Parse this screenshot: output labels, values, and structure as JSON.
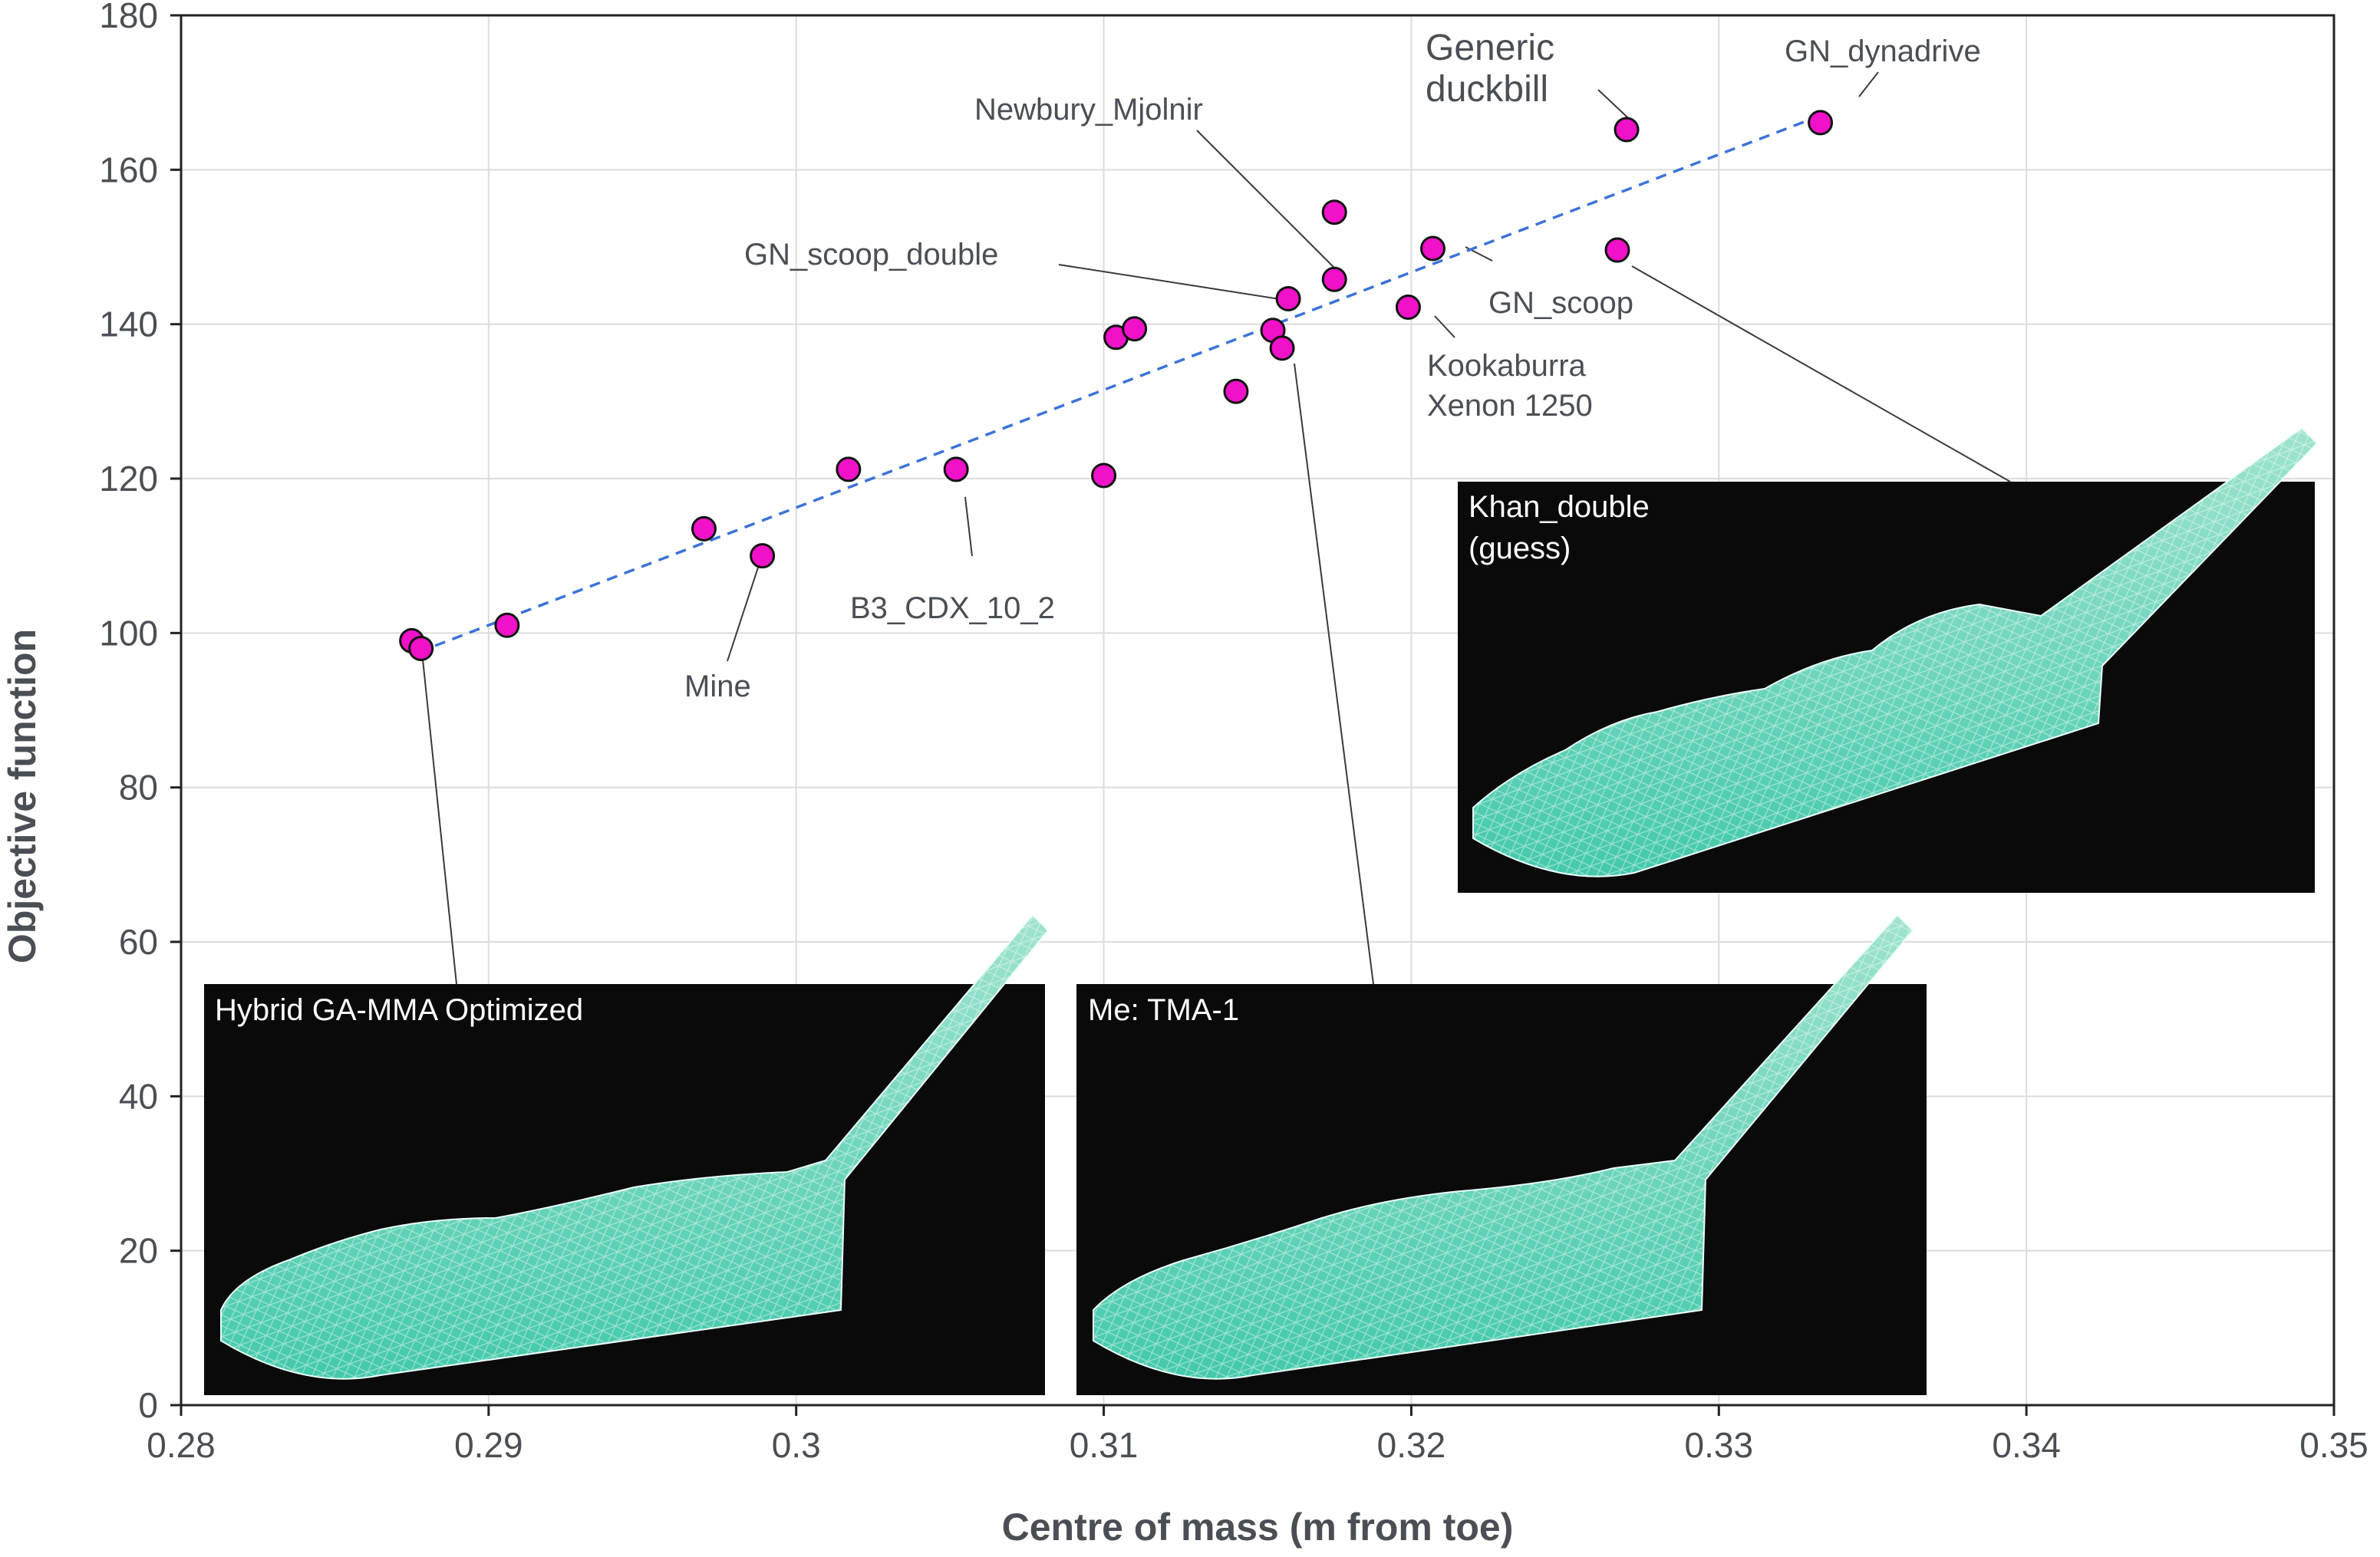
{
  "chart_data": {
    "type": "scatter",
    "xlabel": "Centre of mass (m from toe)",
    "ylabel": "Objective function",
    "xlim": [
      0.28,
      0.35
    ],
    "ylim": [
      0,
      180
    ],
    "x_ticks": [
      "0.28",
      "0.29",
      "0.3",
      "0.31",
      "0.32",
      "0.33",
      "0.34",
      "0.35"
    ],
    "y_ticks": [
      "0",
      "20",
      "40",
      "60",
      "80",
      "100",
      "120",
      "140",
      "160",
      "180"
    ],
    "grid": true,
    "marker_color": "#f011c8",
    "trendline": {
      "style": "dashed",
      "color": "#3b73d8",
      "x": [
        0.2877,
        0.3333
      ],
      "y": [
        97.5,
        167
      ]
    },
    "points": [
      {
        "x": 0.2875,
        "y": 99
      },
      {
        "x": 0.2878,
        "y": 98
      },
      {
        "x": 0.2906,
        "y": 101
      },
      {
        "x": 0.297,
        "y": 113.5
      },
      {
        "x": 0.2989,
        "y": 110
      },
      {
        "x": 0.3017,
        "y": 121.2
      },
      {
        "x": 0.3052,
        "y": 121.2
      },
      {
        "x": 0.31,
        "y": 120.4
      },
      {
        "x": 0.3104,
        "y": 138.3
      },
      {
        "x": 0.311,
        "y": 139.4
      },
      {
        "x": 0.3143,
        "y": 131.3
      },
      {
        "x": 0.3155,
        "y": 139.2
      },
      {
        "x": 0.3158,
        "y": 136.9
      },
      {
        "x": 0.316,
        "y": 143.3
      },
      {
        "x": 0.3175,
        "y": 145.8
      },
      {
        "x": 0.3175,
        "y": 154.5
      },
      {
        "x": 0.3199,
        "y": 142.2
      },
      {
        "x": 0.3207,
        "y": 149.8
      },
      {
        "x": 0.3267,
        "y": 149.6
      },
      {
        "x": 0.327,
        "y": 165.2
      },
      {
        "x": 0.3333,
        "y": 166.1
      }
    ],
    "annotations": [
      {
        "lines": [
          "Generic",
          "duckbill"
        ],
        "big": true
      },
      {
        "lines": [
          "GN_dynadrive"
        ]
      },
      {
        "lines": [
          "Newbury_Mjolnir"
        ]
      },
      {
        "lines": [
          "GN_scoop_double"
        ]
      },
      {
        "lines": [
          "GN_scoop"
        ]
      },
      {
        "lines": [
          "Kookaburra",
          "Xenon 1250"
        ]
      },
      {
        "lines": [
          "B3_CDX_10_2"
        ]
      },
      {
        "lines": [
          "Mine"
        ]
      }
    ]
  },
  "insets": [
    {
      "title_lines": [
        "Hybrid GA-MMA Optimized"
      ]
    },
    {
      "title_lines": [
        "Me: TMA-1"
      ]
    },
    {
      "title_lines": [
        "Khan_double",
        "(guess)"
      ]
    }
  ]
}
